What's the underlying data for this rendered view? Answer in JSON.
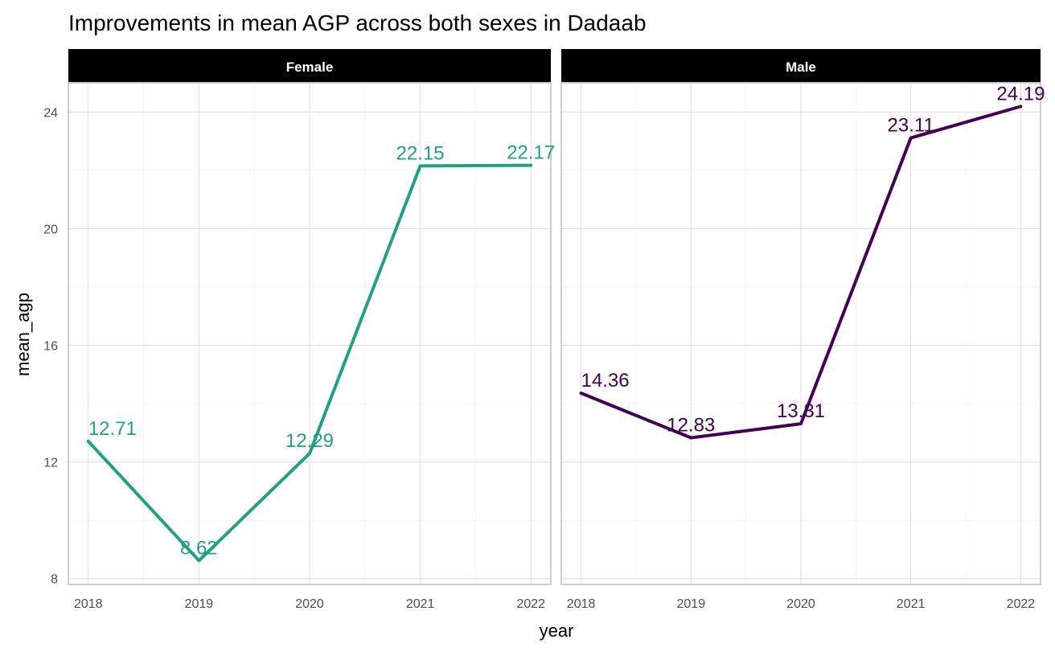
{
  "chart_data": {
    "type": "line",
    "title": "Improvements in mean AGP across both sexes in Dadaab",
    "xlabel": "year",
    "ylabel": "mean_agp",
    "x": [
      2018,
      2019,
      2020,
      2021,
      2022
    ],
    "xlim": [
      2017.82,
      2022.18
    ],
    "ylim": [
      7.8,
      25
    ],
    "yticks": [
      8,
      12,
      16,
      20,
      24
    ],
    "x_minor_breaks": true,
    "y_minor_breaks": true,
    "grid": true,
    "legend": "none",
    "facets": [
      {
        "name": "Female",
        "color": "#22A087",
        "values": [
          12.71,
          8.62,
          12.29,
          22.15,
          22.17
        ],
        "labels": [
          "12.71",
          "8.62",
          "12.29",
          "22.15",
          "22.17"
        ]
      },
      {
        "name": "Male",
        "color": "#440154",
        "values": [
          14.36,
          12.83,
          13.31,
          23.11,
          24.19
        ],
        "labels": [
          "14.36",
          "12.83",
          "13.31",
          "23.11",
          "24.19"
        ]
      }
    ]
  }
}
